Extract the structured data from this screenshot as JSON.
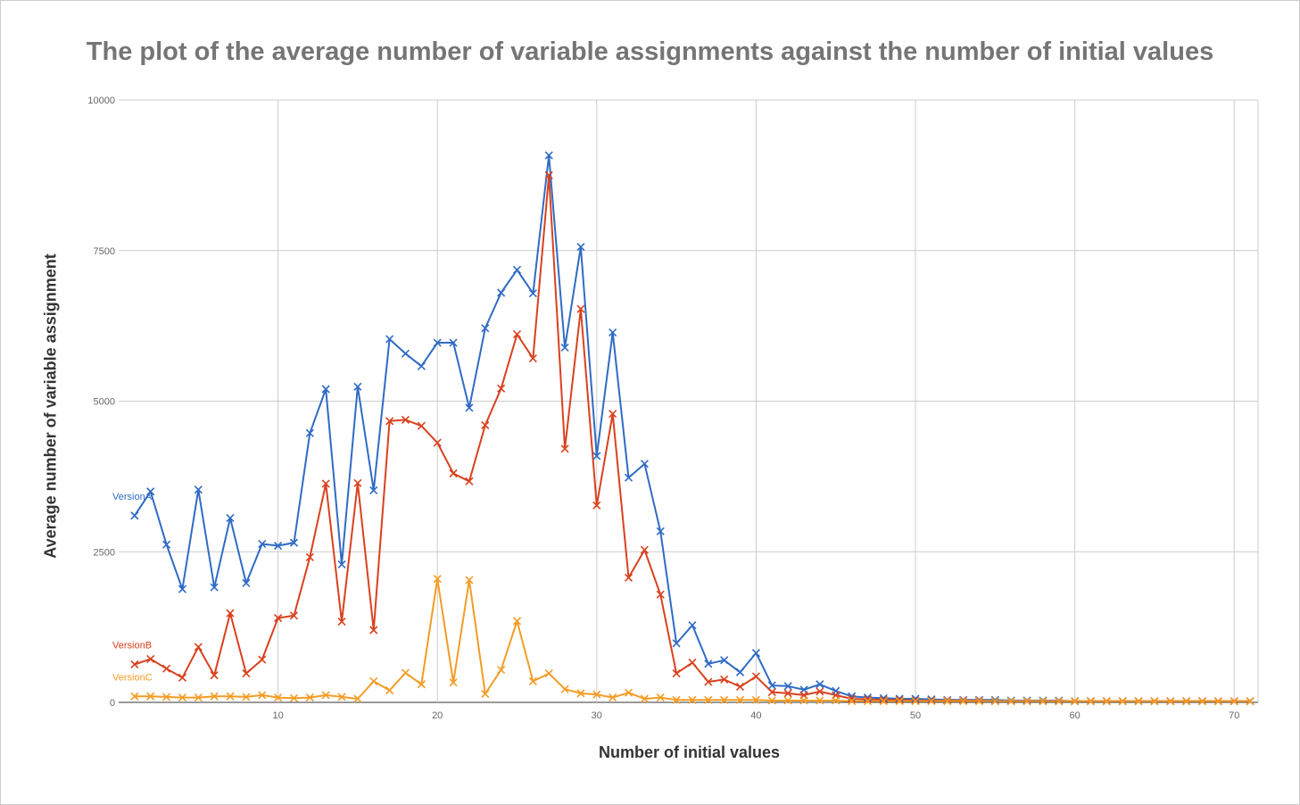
{
  "chart_data": {
    "type": "line",
    "title": "The plot of the average number of variable assignments against the number of initial values",
    "xlabel": "Number of initial values",
    "ylabel": "Average number of variable assignment",
    "xlim": [
      0,
      71.5
    ],
    "ylim": [
      0,
      10000
    ],
    "x_ticks": [
      10,
      20,
      30,
      40,
      50,
      60,
      70
    ],
    "y_ticks": [
      0,
      2500,
      5000,
      7500,
      10000
    ],
    "grid": true,
    "marker": "x",
    "legend": "inline labels at left",
    "x": [
      1,
      2,
      3,
      4,
      5,
      6,
      7,
      8,
      9,
      10,
      11,
      12,
      13,
      14,
      15,
      16,
      17,
      18,
      19,
      20,
      21,
      22,
      23,
      24,
      25,
      26,
      27,
      28,
      29,
      30,
      31,
      32,
      33,
      34,
      35,
      36,
      37,
      38,
      39,
      40,
      41,
      42,
      43,
      44,
      45,
      46,
      47,
      48,
      49,
      50,
      51,
      52,
      53,
      54,
      55,
      56,
      57,
      58,
      59,
      60,
      61,
      62,
      63,
      64,
      65,
      66,
      67,
      68,
      69,
      70,
      71
    ],
    "series": [
      {
        "name": "VersionA",
        "color": "#2f6bc5",
        "values": [
          3100,
          3500,
          2620,
          1880,
          3530,
          1910,
          3060,
          1980,
          2630,
          2600,
          2650,
          4470,
          5200,
          2290,
          5240,
          3520,
          6030,
          5790,
          5580,
          5970,
          5970,
          4890,
          6210,
          6800,
          7180,
          6790,
          9080,
          5890,
          7560,
          4090,
          6140,
          3730,
          3960,
          2840,
          980,
          1280,
          640,
          700,
          500,
          820,
          280,
          270,
          210,
          300,
          190,
          100,
          80,
          70,
          60,
          60,
          50,
          40,
          40,
          40,
          40,
          30,
          30,
          30,
          30,
          20,
          20,
          20,
          20,
          20,
          20,
          20,
          20,
          20,
          20,
          20,
          20
        ]
      },
      {
        "name": "VersionB",
        "color": "#d9411e",
        "values": [
          630,
          720,
          560,
          410,
          920,
          450,
          1480,
          480,
          710,
          1400,
          1440,
          2410,
          3630,
          1340,
          3640,
          1200,
          4670,
          4690,
          4590,
          4310,
          3800,
          3670,
          4600,
          5210,
          6110,
          5710,
          8750,
          4210,
          6530,
          3270,
          4790,
          2070,
          2530,
          1790,
          480,
          660,
          340,
          380,
          260,
          430,
          170,
          150,
          120,
          180,
          120,
          60,
          50,
          40,
          40,
          30,
          30,
          30,
          30,
          30,
          20,
          20,
          20,
          20,
          20,
          20,
          20,
          20,
          20,
          20,
          20,
          20,
          20,
          20,
          20,
          20,
          20
        ]
      },
      {
        "name": "VersionC",
        "color": "#f49c25",
        "values": [
          100,
          100,
          90,
          80,
          80,
          100,
          100,
          90,
          120,
          80,
          70,
          80,
          120,
          90,
          60,
          350,
          200,
          490,
          300,
          2050,
          330,
          2030,
          140,
          540,
          1350,
          350,
          480,
          220,
          150,
          130,
          80,
          160,
          60,
          80,
          40,
          40,
          40,
          40,
          40,
          40,
          30,
          30,
          30,
          30,
          30,
          20,
          20,
          20,
          20,
          20,
          20,
          20,
          20,
          20,
          20,
          20,
          20,
          20,
          20,
          20,
          20,
          20,
          20,
          20,
          20,
          20,
          20,
          20,
          20,
          20,
          20
        ]
      }
    ]
  }
}
